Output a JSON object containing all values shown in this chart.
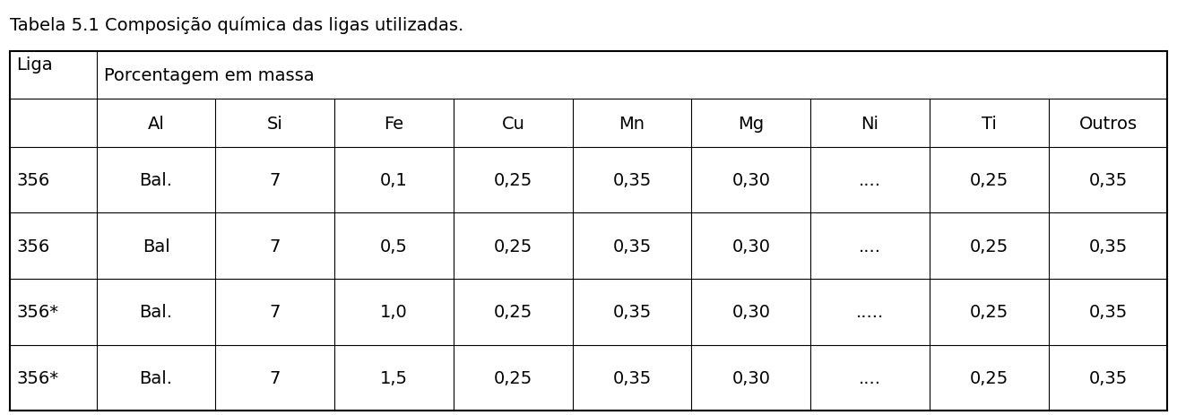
{
  "title": "Tabela 5.1 Composição química das ligas utilizadas.",
  "header1_col0": "Liga",
  "header1_col1": "Porcentagem em massa",
  "elements": [
    "Al",
    "Si",
    "Fe",
    "Cu",
    "Mn",
    "Mg",
    "Ni",
    "Ti",
    "Outros"
  ],
  "rows": [
    [
      "356",
      "Bal.",
      "7",
      "0,1",
      "0,25",
      "0,35",
      "0,30",
      "....",
      "0,25",
      "0,35"
    ],
    [
      "356",
      "Bal",
      "7",
      "0,5",
      "0,25",
      "0,35",
      "0,30",
      "....",
      "0,25",
      "0,35"
    ],
    [
      "356*",
      "Bal.",
      "7",
      "1,0",
      "0,25",
      "0,35",
      "0,30",
      ".....",
      "0,25",
      "0,35"
    ],
    [
      "356*",
      "Bal.",
      "7",
      "1,5",
      "0,25",
      "0,35",
      "0,30",
      "....",
      "0,25",
      "0,35"
    ]
  ],
  "background_color": "#ffffff",
  "text_color": "#000000",
  "font_size": 14,
  "title_font_size": 14,
  "fig_width": 13.13,
  "fig_height": 4.64,
  "dpi": 100
}
